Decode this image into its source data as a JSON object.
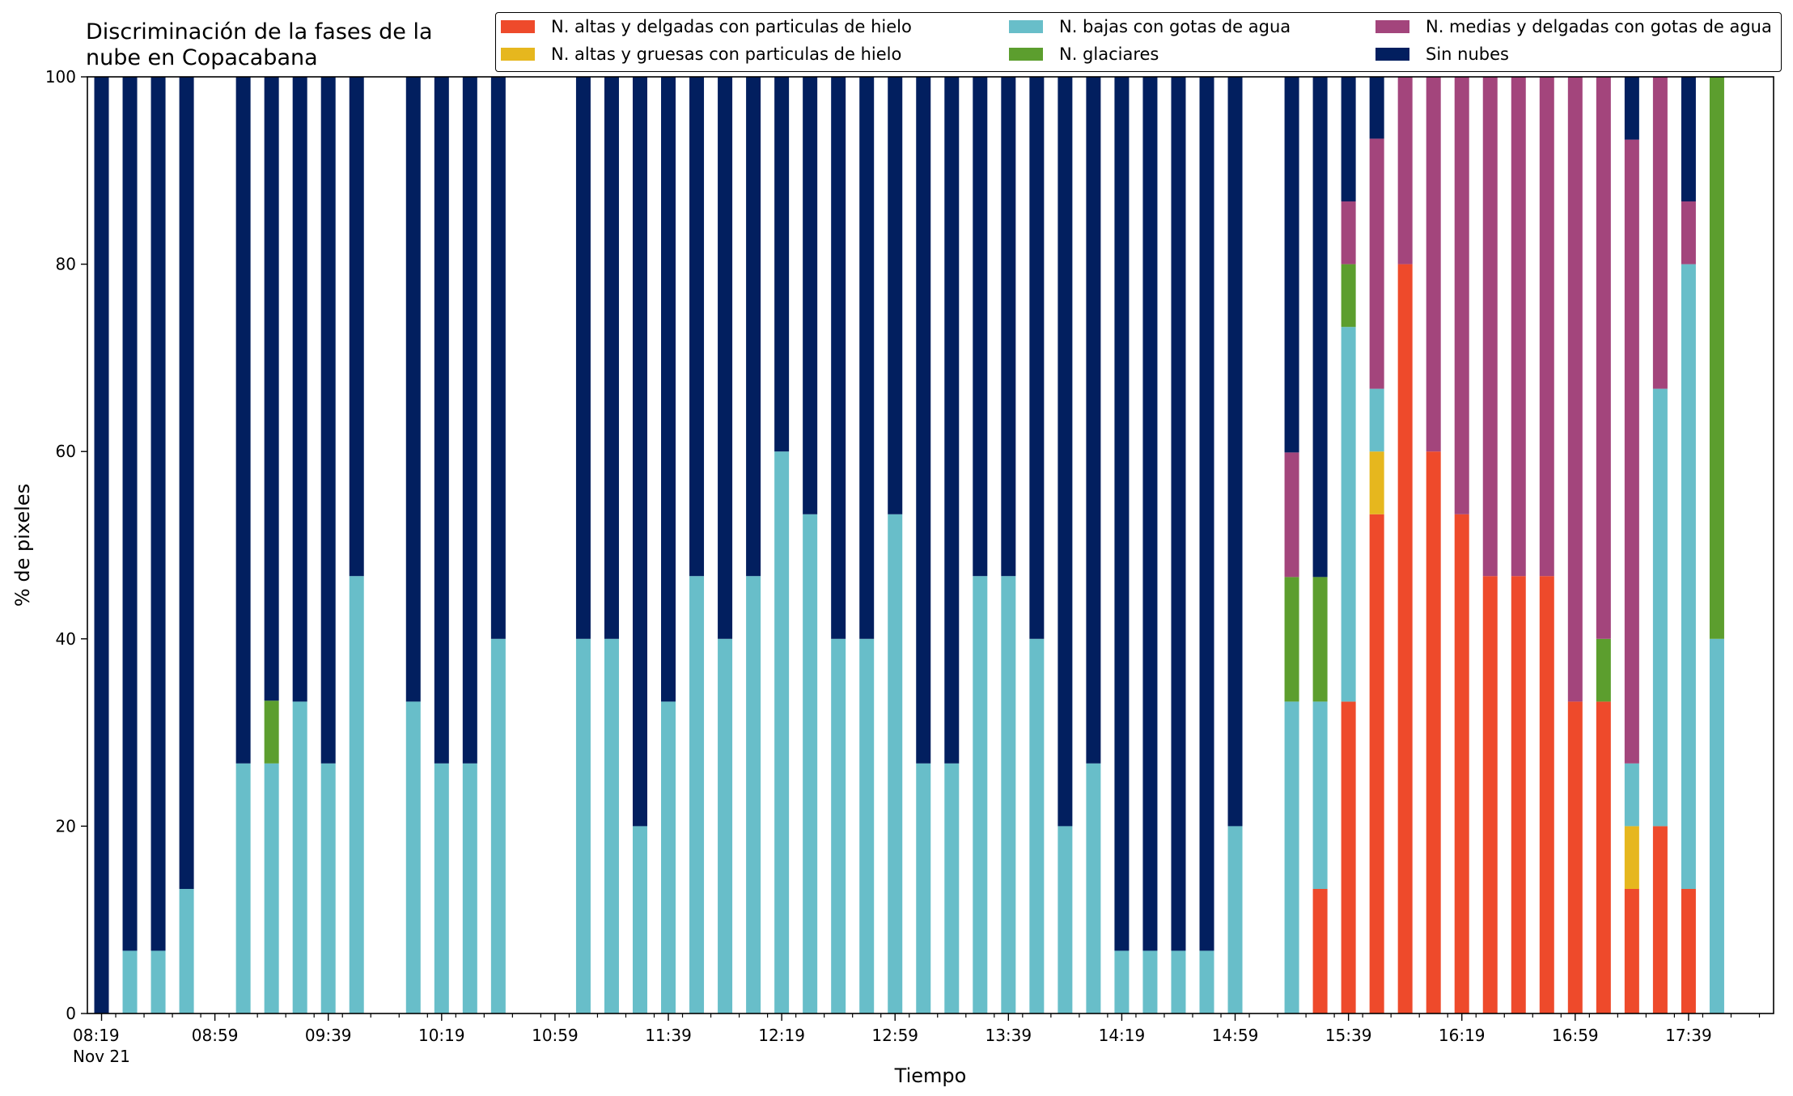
{
  "chart_data": {
    "type": "bar",
    "title_lines": [
      "Discriminación de la fases de la",
      "nube en Copacabana"
    ],
    "xlabel": "Tiempo",
    "ylabel": "% de pixeles",
    "ylim": [
      0,
      100
    ],
    "yticks": [
      "0",
      "20",
      "40",
      "60",
      "80",
      "100"
    ],
    "x_range": [
      "08:14",
      "18:09"
    ],
    "minor_tick_interval_min": 10,
    "x_tick_labels": [
      {
        "time": "08:19",
        "label": "08:19",
        "sublabel": "Nov 21"
      },
      {
        "time": "08:59",
        "label": "08:59"
      },
      {
        "time": "09:39",
        "label": "09:39"
      },
      {
        "time": "10:19",
        "label": "10:19"
      },
      {
        "time": "10:59",
        "label": "10:59"
      },
      {
        "time": "11:39",
        "label": "11:39"
      },
      {
        "time": "12:19",
        "label": "12:19"
      },
      {
        "time": "12:59",
        "label": "12:59"
      },
      {
        "time": "13:39",
        "label": "13:39"
      },
      {
        "time": "14:19",
        "label": "14:19"
      },
      {
        "time": "14:59",
        "label": "14:59"
      },
      {
        "time": "15:39",
        "label": "15:39"
      },
      {
        "time": "16:19",
        "label": "16:19"
      },
      {
        "time": "16:59",
        "label": "16:59"
      },
      {
        "time": "17:39",
        "label": "17:39"
      }
    ],
    "legend_position": "top-right",
    "series": [
      {
        "key": "altas_delgadas",
        "name": "N. altas y delgadas con particulas de hielo",
        "color": "#ee4a2b"
      },
      {
        "key": "altas_gruesas",
        "name": "N. altas y gruesas con particulas de hielo",
        "color": "#e6b71e"
      },
      {
        "key": "bajas",
        "name": "N. bajas con gotas de agua",
        "color": "#68bec9"
      },
      {
        "key": "glaciares",
        "name": "N. glaciares",
        "color": "#5c9e2e"
      },
      {
        "key": "medias",
        "name": "N. medias y delgadas con gotas de agua",
        "color": "#a3457c"
      },
      {
        "key": "sin_nubes",
        "name": "Sin nubes",
        "color": "#021f5f"
      }
    ],
    "bars": [
      {
        "time": "08:19",
        "altas_delgadas": 0,
        "altas_gruesas": 0,
        "bajas": 0,
        "glaciares": 0,
        "medias": 0,
        "sin_nubes": 100
      },
      {
        "time": "08:29",
        "altas_delgadas": 0,
        "altas_gruesas": 0,
        "bajas": 6.7,
        "glaciares": 0,
        "medias": 0,
        "sin_nubes": 93.3
      },
      {
        "time": "08:39",
        "altas_delgadas": 0,
        "altas_gruesas": 0,
        "bajas": 6.7,
        "glaciares": 0,
        "medias": 0,
        "sin_nubes": 93.3
      },
      {
        "time": "08:49",
        "altas_delgadas": 0,
        "altas_gruesas": 0,
        "bajas": 13.3,
        "glaciares": 0,
        "medias": 0,
        "sin_nubes": 86.7
      },
      {
        "time": "09:09",
        "altas_delgadas": 0,
        "altas_gruesas": 0,
        "bajas": 26.7,
        "glaciares": 0,
        "medias": 0,
        "sin_nubes": 73.3
      },
      {
        "time": "09:19",
        "altas_delgadas": 0,
        "altas_gruesas": 0,
        "bajas": 26.7,
        "glaciares": 6.7,
        "medias": 0,
        "sin_nubes": 66.6
      },
      {
        "time": "09:29",
        "altas_delgadas": 0,
        "altas_gruesas": 0,
        "bajas": 33.3,
        "glaciares": 0,
        "medias": 0,
        "sin_nubes": 66.7
      },
      {
        "time": "09:39",
        "altas_delgadas": 0,
        "altas_gruesas": 0,
        "bajas": 26.7,
        "glaciares": 0,
        "medias": 0,
        "sin_nubes": 73.3
      },
      {
        "time": "09:49",
        "altas_delgadas": 0,
        "altas_gruesas": 0,
        "bajas": 46.7,
        "glaciares": 0,
        "medias": 0,
        "sin_nubes": 53.3
      },
      {
        "time": "10:09",
        "altas_delgadas": 0,
        "altas_gruesas": 0,
        "bajas": 33.3,
        "glaciares": 0,
        "medias": 0,
        "sin_nubes": 66.7
      },
      {
        "time": "10:19",
        "altas_delgadas": 0,
        "altas_gruesas": 0,
        "bajas": 26.7,
        "glaciares": 0,
        "medias": 0,
        "sin_nubes": 73.3
      },
      {
        "time": "10:29",
        "altas_delgadas": 0,
        "altas_gruesas": 0,
        "bajas": 26.7,
        "glaciares": 0,
        "medias": 0,
        "sin_nubes": 73.3
      },
      {
        "time": "10:39",
        "altas_delgadas": 0,
        "altas_gruesas": 0,
        "bajas": 40,
        "glaciares": 0,
        "medias": 0,
        "sin_nubes": 60
      },
      {
        "time": "11:09",
        "altas_delgadas": 0,
        "altas_gruesas": 0,
        "bajas": 40,
        "glaciares": 0,
        "medias": 0,
        "sin_nubes": 60
      },
      {
        "time": "11:19",
        "altas_delgadas": 0,
        "altas_gruesas": 0,
        "bajas": 40,
        "glaciares": 0,
        "medias": 0,
        "sin_nubes": 60
      },
      {
        "time": "11:29",
        "altas_delgadas": 0,
        "altas_gruesas": 0,
        "bajas": 20,
        "glaciares": 0,
        "medias": 0,
        "sin_nubes": 80
      },
      {
        "time": "11:39",
        "altas_delgadas": 0,
        "altas_gruesas": 0,
        "bajas": 33.3,
        "glaciares": 0,
        "medias": 0,
        "sin_nubes": 66.7
      },
      {
        "time": "11:49",
        "altas_delgadas": 0,
        "altas_gruesas": 0,
        "bajas": 46.7,
        "glaciares": 0,
        "medias": 0,
        "sin_nubes": 53.3
      },
      {
        "time": "11:59",
        "altas_delgadas": 0,
        "altas_gruesas": 0,
        "bajas": 40,
        "glaciares": 0,
        "medias": 0,
        "sin_nubes": 60
      },
      {
        "time": "12:09",
        "altas_delgadas": 0,
        "altas_gruesas": 0,
        "bajas": 46.7,
        "glaciares": 0,
        "medias": 0,
        "sin_nubes": 53.3
      },
      {
        "time": "12:19",
        "altas_delgadas": 0,
        "altas_gruesas": 0,
        "bajas": 60,
        "glaciares": 0,
        "medias": 0,
        "sin_nubes": 40
      },
      {
        "time": "12:29",
        "altas_delgadas": 0,
        "altas_gruesas": 0,
        "bajas": 53.3,
        "glaciares": 0,
        "medias": 0,
        "sin_nubes": 46.7
      },
      {
        "time": "12:39",
        "altas_delgadas": 0,
        "altas_gruesas": 0,
        "bajas": 40,
        "glaciares": 0,
        "medias": 0,
        "sin_nubes": 60
      },
      {
        "time": "12:49",
        "altas_delgadas": 0,
        "altas_gruesas": 0,
        "bajas": 40,
        "glaciares": 0,
        "medias": 0,
        "sin_nubes": 60
      },
      {
        "time": "12:59",
        "altas_delgadas": 0,
        "altas_gruesas": 0,
        "bajas": 53.3,
        "glaciares": 0,
        "medias": 0,
        "sin_nubes": 46.7
      },
      {
        "time": "13:09",
        "altas_delgadas": 0,
        "altas_gruesas": 0,
        "bajas": 26.7,
        "glaciares": 0,
        "medias": 0,
        "sin_nubes": 73.3
      },
      {
        "time": "13:19",
        "altas_delgadas": 0,
        "altas_gruesas": 0,
        "bajas": 26.7,
        "glaciares": 0,
        "medias": 0,
        "sin_nubes": 73.3
      },
      {
        "time": "13:29",
        "altas_delgadas": 0,
        "altas_gruesas": 0,
        "bajas": 46.7,
        "glaciares": 0,
        "medias": 0,
        "sin_nubes": 53.3
      },
      {
        "time": "13:39",
        "altas_delgadas": 0,
        "altas_gruesas": 0,
        "bajas": 46.7,
        "glaciares": 0,
        "medias": 0,
        "sin_nubes": 53.3
      },
      {
        "time": "13:49",
        "altas_delgadas": 0,
        "altas_gruesas": 0,
        "bajas": 40,
        "glaciares": 0,
        "medias": 0,
        "sin_nubes": 60
      },
      {
        "time": "13:59",
        "altas_delgadas": 0,
        "altas_gruesas": 0,
        "bajas": 20,
        "glaciares": 0,
        "medias": 0,
        "sin_nubes": 80
      },
      {
        "time": "14:09",
        "altas_delgadas": 0,
        "altas_gruesas": 0,
        "bajas": 26.7,
        "glaciares": 0,
        "medias": 0,
        "sin_nubes": 73.3
      },
      {
        "time": "14:19",
        "altas_delgadas": 0,
        "altas_gruesas": 0,
        "bajas": 6.7,
        "glaciares": 0,
        "medias": 0,
        "sin_nubes": 93.3
      },
      {
        "time": "14:29",
        "altas_delgadas": 0,
        "altas_gruesas": 0,
        "bajas": 6.7,
        "glaciares": 0,
        "medias": 0,
        "sin_nubes": 93.3
      },
      {
        "time": "14:39",
        "altas_delgadas": 0,
        "altas_gruesas": 0,
        "bajas": 6.7,
        "glaciares": 0,
        "medias": 0,
        "sin_nubes": 93.3
      },
      {
        "time": "14:49",
        "altas_delgadas": 0,
        "altas_gruesas": 0,
        "bajas": 6.7,
        "glaciares": 0,
        "medias": 0,
        "sin_nubes": 93.3
      },
      {
        "time": "14:59",
        "altas_delgadas": 0,
        "altas_gruesas": 0,
        "bajas": 20,
        "glaciares": 0,
        "medias": 0,
        "sin_nubes": 80
      },
      {
        "time": "15:19",
        "altas_delgadas": 0,
        "altas_gruesas": 0,
        "bajas": 33.3,
        "glaciares": 13.3,
        "medias": 13.3,
        "sin_nubes": 40.1
      },
      {
        "time": "15:29",
        "altas_delgadas": 13.3,
        "altas_gruesas": 0,
        "bajas": 20,
        "glaciares": 13.3,
        "medias": 0,
        "sin_nubes": 53.4
      },
      {
        "time": "15:39",
        "altas_delgadas": 33.3,
        "altas_gruesas": 0,
        "bajas": 40,
        "glaciares": 6.7,
        "medias": 6.7,
        "sin_nubes": 13.3
      },
      {
        "time": "15:49",
        "altas_delgadas": 53.3,
        "altas_gruesas": 6.7,
        "bajas": 6.7,
        "glaciares": 0,
        "medias": 26.7,
        "sin_nubes": 6.6
      },
      {
        "time": "15:59",
        "altas_delgadas": 80,
        "altas_gruesas": 0,
        "bajas": 0,
        "glaciares": 0,
        "medias": 20,
        "sin_nubes": 0
      },
      {
        "time": "16:09",
        "altas_delgadas": 60,
        "altas_gruesas": 0,
        "bajas": 0,
        "glaciares": 0,
        "medias": 40,
        "sin_nubes": 0
      },
      {
        "time": "16:19",
        "altas_delgadas": 53.3,
        "altas_gruesas": 0,
        "bajas": 0,
        "glaciares": 0,
        "medias": 46.7,
        "sin_nubes": 0
      },
      {
        "time": "16:29",
        "altas_delgadas": 46.7,
        "altas_gruesas": 0,
        "bajas": 0,
        "glaciares": 0,
        "medias": 53.3,
        "sin_nubes": 0
      },
      {
        "time": "16:39",
        "altas_delgadas": 46.7,
        "altas_gruesas": 0,
        "bajas": 0,
        "glaciares": 0,
        "medias": 53.3,
        "sin_nubes": 0
      },
      {
        "time": "16:49",
        "altas_delgadas": 46.7,
        "altas_gruesas": 0,
        "bajas": 0,
        "glaciares": 0,
        "medias": 53.3,
        "sin_nubes": 0
      },
      {
        "time": "16:59",
        "altas_delgadas": 33.3,
        "altas_gruesas": 0,
        "bajas": 0,
        "glaciares": 0,
        "medias": 66.7,
        "sin_nubes": 0
      },
      {
        "time": "17:09",
        "altas_delgadas": 33.3,
        "altas_gruesas": 0,
        "bajas": 0,
        "glaciares": 6.7,
        "medias": 60,
        "sin_nubes": 0
      },
      {
        "time": "17:19",
        "altas_delgadas": 13.3,
        "altas_gruesas": 6.7,
        "bajas": 6.7,
        "glaciares": 0,
        "medias": 66.6,
        "sin_nubes": 6.7
      },
      {
        "time": "17:29",
        "altas_delgadas": 20,
        "altas_gruesas": 0,
        "bajas": 46.7,
        "glaciares": 0,
        "medias": 33.3,
        "sin_nubes": 0
      },
      {
        "time": "17:39",
        "altas_delgadas": 13.3,
        "altas_gruesas": 0,
        "bajas": 66.7,
        "glaciares": 0,
        "medias": 6.7,
        "sin_nubes": 13.3
      },
      {
        "time": "17:49",
        "altas_delgadas": 0,
        "altas_gruesas": 0,
        "bajas": 40,
        "glaciares": 60,
        "medias": 0,
        "sin_nubes": 0
      }
    ]
  }
}
